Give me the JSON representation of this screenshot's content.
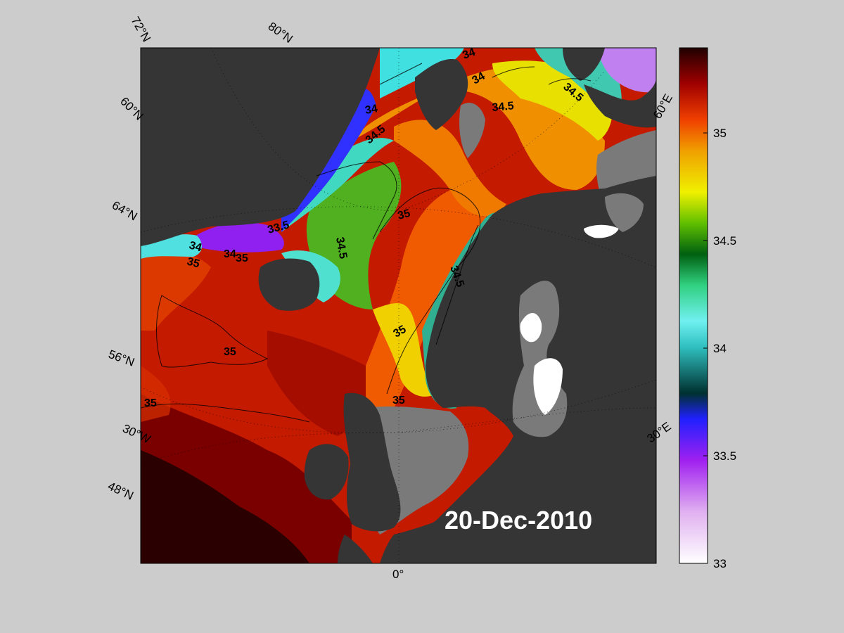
{
  "map": {
    "date": "20-Dec-2010",
    "lat_labels": [
      "72°N",
      "60°N",
      "64°N",
      "56°N",
      "48°N"
    ],
    "lon_labels": [
      "80°N",
      "60°E",
      "30°W",
      "30°E",
      "0°"
    ],
    "contour_labels": [
      "34",
      "34",
      "34.5",
      "34",
      "34.5",
      "34.5",
      "35",
      "33.5",
      "34.5",
      "34",
      "34.5",
      "35",
      "35",
      "34",
      "35",
      "35",
      "35",
      "35"
    ]
  },
  "colorbar": {
    "ticks": [
      "35",
      "34.5",
      "34",
      "33.5",
      "33"
    ],
    "min": 33,
    "max": 35.4
  },
  "colors": {
    "background": "#cccccc",
    "land": "#353535",
    "land_secondary": "#7a7a7a",
    "ocean_deep_red": "#2a0000"
  }
}
